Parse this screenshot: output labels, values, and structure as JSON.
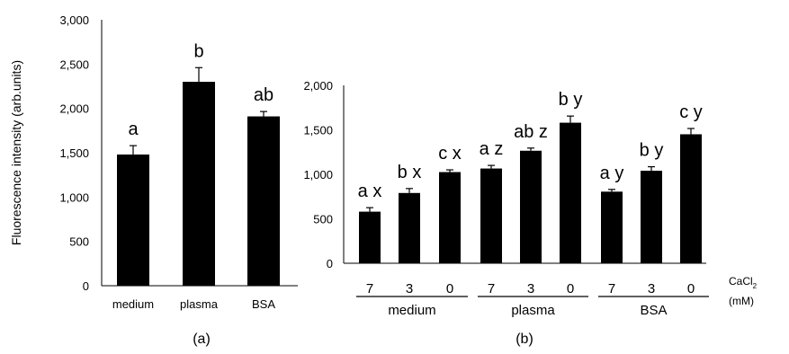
{
  "chart_data": [
    {
      "type": "bar",
      "panel_label": "(a)",
      "ylabel": "Fluorescence intensity (arb.units)",
      "ylim": [
        0,
        3000
      ],
      "yticks": [
        "0",
        "500",
        "1,000",
        "1,500",
        "2,000",
        "2,500",
        "3,000"
      ],
      "categories": [
        "medium",
        "plasma",
        "BSA"
      ],
      "values": [
        1480,
        2300,
        1910
      ],
      "errors": [
        100,
        160,
        55
      ],
      "letters": [
        "a",
        "b",
        "ab"
      ],
      "bar_color": "#000000"
    },
    {
      "type": "bar",
      "panel_label": "(b)",
      "ylim": [
        0,
        2000
      ],
      "yticks": [
        "0",
        "500",
        "1,000",
        "1,500",
        "2,000"
      ],
      "categories": [
        "7",
        "3",
        "0",
        "7",
        "3",
        "0",
        "7",
        "3",
        "0"
      ],
      "values": [
        580,
        790,
        1025,
        1065,
        1265,
        1580,
        805,
        1040,
        1450
      ],
      "errors": [
        45,
        50,
        25,
        35,
        30,
        75,
        25,
        45,
        65
      ],
      "letters": [
        "a x",
        "b x",
        "c x",
        "a z",
        "ab z",
        "b y",
        "a y",
        "b y",
        "c y"
      ],
      "groups": [
        "medium",
        "plasma",
        "BSA"
      ],
      "xlabel_line1": "CaCl",
      "xlabel_sub": "2",
      "xlabel_line2": "(mM)",
      "bar_color": "#000000"
    }
  ]
}
